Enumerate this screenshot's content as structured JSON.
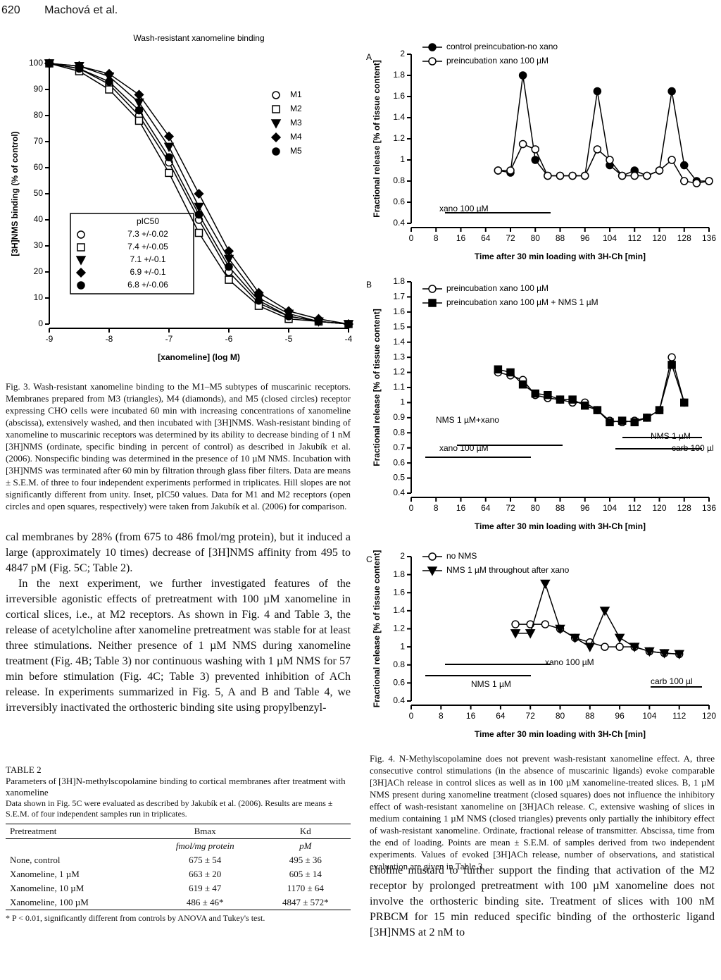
{
  "header": {
    "page": "620",
    "authors": "Machová et al."
  },
  "chart_data": [
    {
      "type": "line",
      "title": "Wash-resistant xanomeline binding",
      "ylabel": "[3H]NMS binding (% of control)",
      "xlabel": "[xanomeline] (log M)",
      "x": [
        -9,
        -8.5,
        -8,
        -7.5,
        -7,
        -6.5,
        -6,
        -5.5,
        -5,
        -4.5,
        -4
      ],
      "xlim": [
        -9,
        -4
      ],
      "xticks": [
        -9,
        -8,
        -7,
        -6,
        -5,
        -4
      ],
      "ylim": [
        0,
        100
      ],
      "yticks": [
        0,
        10,
        20,
        30,
        40,
        50,
        60,
        70,
        80,
        90,
        100
      ],
      "series": [
        {
          "name": "M1",
          "color": "#000000",
          "marker": "circle-open",
          "values": [
            100,
            98,
            92,
            80,
            62,
            40,
            20,
            8,
            3,
            1,
            0
          ]
        },
        {
          "name": "M2",
          "color": "#000000",
          "marker": "square-open",
          "values": [
            100,
            97,
            90,
            78,
            58,
            35,
            17,
            7,
            2,
            1,
            0
          ]
        },
        {
          "name": "M3",
          "color": "#000000",
          "marker": "triangle-filled",
          "values": [
            100,
            99,
            95,
            85,
            68,
            45,
            25,
            10,
            4,
            1,
            0
          ]
        },
        {
          "name": "M4",
          "color": "#000000",
          "marker": "diamond-filled",
          "values": [
            100,
            99,
            96,
            88,
            72,
            50,
            28,
            12,
            5,
            2,
            0
          ]
        },
        {
          "name": "M5",
          "color": "#000000",
          "marker": "circle-filled",
          "values": [
            100,
            98,
            93,
            82,
            64,
            42,
            22,
            9,
            3,
            1,
            0
          ]
        }
      ],
      "inset": {
        "header": "pIC50",
        "rows": [
          "7.3 +/-0.02",
          "7.4 +/-0.05",
          "7.1 +/-0.1",
          "6.9 +/-0.1",
          "6.8 +/-0.06"
        ]
      }
    },
    {
      "type": "line",
      "panel": "A",
      "ylabel": "Fractional release [% of tissue content]",
      "xlabel": "Time after 30 min loading with 3H-Ch [min]",
      "x": [
        68,
        72,
        76,
        80,
        84,
        88,
        92,
        96,
        100,
        104,
        108,
        112,
        116,
        120,
        124,
        128,
        132,
        136
      ],
      "xlim": [
        0,
        136
      ],
      "xticks": [
        0,
        8,
        16,
        64,
        72,
        80,
        88,
        96,
        104,
        112,
        120,
        128,
        136
      ],
      "ylim": [
        0.4,
        2.0
      ],
      "yticks": [
        0.4,
        0.6,
        0.8,
        1.0,
        1.2,
        1.4,
        1.6,
        1.8,
        2.0
      ],
      "series": [
        {
          "name": "control preincubation-no xano",
          "color": "#000000",
          "marker": "circle-filled",
          "values": [
            0.9,
            0.88,
            1.8,
            1.0,
            0.85,
            0.85,
            0.85,
            0.85,
            1.65,
            0.95,
            0.85,
            0.9,
            0.85,
            0.9,
            1.65,
            0.95,
            0.8,
            0.8
          ]
        },
        {
          "name": "preincubation xano 100 µM",
          "color": "#000000",
          "marker": "circle-open",
          "values": [
            0.9,
            0.9,
            1.15,
            1.1,
            0.85,
            0.85,
            0.85,
            0.85,
            1.1,
            1.0,
            0.85,
            0.85,
            0.85,
            0.9,
            1.0,
            0.8,
            0.78,
            0.8
          ]
        }
      ],
      "annotations": [
        "xano 100 µM"
      ]
    },
    {
      "type": "line",
      "panel": "B",
      "ylabel": "Fractional release [% of tissue content]",
      "xlabel": "Time after 30 min loading with 3H-Ch [min]",
      "x": [
        68,
        72,
        76,
        80,
        84,
        88,
        92,
        96,
        100,
        104,
        108,
        112,
        116,
        120,
        124,
        128
      ],
      "xlim": [
        0,
        136
      ],
      "xticks": [
        0,
        8,
        16,
        64,
        72,
        80,
        88,
        96,
        104,
        112,
        120,
        128,
        136
      ],
      "ylim": [
        0.4,
        1.8
      ],
      "yticks": [
        0.4,
        0.5,
        0.6,
        0.7,
        0.8,
        0.9,
        1.0,
        1.1,
        1.2,
        1.3,
        1.4,
        1.5,
        1.6,
        1.7,
        1.8
      ],
      "series": [
        {
          "name": "preincubation xano 100 µM",
          "color": "#000000",
          "marker": "circle-open",
          "values": [
            1.2,
            1.18,
            1.15,
            1.05,
            1.03,
            1.02,
            1.0,
            1.0,
            0.95,
            0.88,
            0.87,
            0.88,
            0.9,
            0.95,
            1.3,
            1.0
          ]
        },
        {
          "name": "preincubation xano 100 µM + NMS 1 µM",
          "color": "#000000",
          "marker": "square-filled",
          "values": [
            1.22,
            1.2,
            1.12,
            1.06,
            1.05,
            1.02,
            1.02,
            0.98,
            0.95,
            0.87,
            0.88,
            0.87,
            0.9,
            0.95,
            1.25,
            1.0
          ]
        }
      ],
      "annotations": [
        "NMS 1 µM+xano",
        "xano 100 µM",
        "NMS 1 µM",
        "carb 100 µl"
      ]
    },
    {
      "type": "line",
      "panel": "C",
      "ylabel": "Fractional release [% of tissue content]",
      "xlabel": "Time after 30 min loading with 3H-Ch [min]",
      "x": [
        68,
        72,
        76,
        80,
        84,
        88,
        92,
        96,
        100,
        104,
        108,
        112
      ],
      "xlim": [
        0,
        120
      ],
      "xticks": [
        0,
        8,
        16,
        64,
        72,
        80,
        88,
        96,
        104,
        112,
        120
      ],
      "ylim": [
        0.4,
        2.0
      ],
      "yticks": [
        0.4,
        0.6,
        0.8,
        1.0,
        1.2,
        1.4,
        1.6,
        1.8,
        2.0
      ],
      "series": [
        {
          "name": "no NMS",
          "color": "#000000",
          "marker": "circle-open",
          "values": [
            1.25,
            1.25,
            1.25,
            1.2,
            1.1,
            1.05,
            1.0,
            1.0,
            1.0,
            0.95,
            0.93,
            0.92
          ]
        },
        {
          "name": "NMS 1 µM throughout after xano",
          "color": "#000000",
          "marker": "triangle-filled",
          "values": [
            1.15,
            1.15,
            1.7,
            1.2,
            1.1,
            1.0,
            1.4,
            1.1,
            1.0,
            0.95,
            0.93,
            0.92
          ]
        }
      ],
      "annotations": [
        "NMS 1 µM",
        "xano 100 µM",
        "carb 100 µl"
      ]
    }
  ],
  "fig3_caption": "Fig. 3. Wash-resistant xanomeline binding to the M1–M5 subtypes of muscarinic receptors. Membranes prepared from M3 (triangles), M4 (diamonds), and M5 (closed circles) receptor expressing CHO cells were incubated 60 min with increasing concentrations of xanomeline (abscissa), extensively washed, and then incubated with [3H]NMS. Wash-resistant binding of xanomeline to muscarinic receptors was determined by its ability to decrease binding of 1 nM [3H]NMS (ordinate, specific binding in percent of control) as described in Jakubík et al. (2006). Nonspecific binding was determined in the presence of 10 µM NMS. Incubation with [3H]NMS was terminated after 60 min by filtration through glass fiber filters. Data are means ± S.E.M. of three to four independent experiments performed in triplicates. Hill slopes are not significantly different from unity. Inset, pIC50 values. Data for M1 and M2 receptors (open circles and open squares, respectively) were taken from Jakubík et al. (2006) for comparison.",
  "left_body": [
    "cal membranes by 28% (from 675 to 486 fmol/mg protein), but it induced a large (approximately 10 times) decrease of [3H]NMS affinity from 495 to 4847 pM (Fig. 5C; Table 2).",
    "In the next experiment, we further investigated features of the irreversible agonistic effects of pretreatment with 100 µM xanomeline in cortical slices, i.e., at M2 receptors. As shown in Fig. 4 and Table 3, the release of acetylcholine after xanomeline pretreatment was stable for at least three stimulations. Neither presence of 1 µM NMS during xanomeline treatment (Fig. 4B; Table 3) nor continuous washing with 1 µM NMS for 57 min before stimulation (Fig. 4C; Table 3) prevented inhibition of ACh release. In experiments summarized in Fig. 5, A and B and Table 4, we irreversibly inactivated the orthosteric binding site using propylbenzyl-"
  ],
  "table": {
    "label": "TABLE 2",
    "title": "Parameters of [3H]N-methylscopolamine binding to cortical membranes after treatment with xanomeline",
    "note": "Data shown in Fig. 5C were evaluated as described by Jakubík et al. (2006). Results are means ± S.E.M. of four independent samples run in triplicates.",
    "columns": [
      "Pretreatment",
      "Bmax",
      "Kd"
    ],
    "units": [
      "fmol/mg protein",
      "pM"
    ],
    "rows": [
      [
        "None, control",
        "675 ± 54",
        "495 ± 36"
      ],
      [
        "Xanomeline, 1 µM",
        "663 ± 20",
        "605 ± 14"
      ],
      [
        "Xanomeline, 10 µM",
        "619 ± 47",
        "1170 ± 64"
      ],
      [
        "Xanomeline, 100 µM",
        "486 ± 46*",
        "4847 ± 572*"
      ]
    ],
    "footnote": "* P < 0.01, significantly different from controls by ANOVA and Tukey's test."
  },
  "fig4_caption": "Fig. 4. N-Methylscopolamine does not prevent wash-resistant xanomeline effect. A, three consecutive control stimulations (in the absence of muscarinic ligands) evoke comparable [3H]ACh release in control slices as well as in 100 µM xanomeline-treated slices. B, 1 µM NMS present during xanomeline treatment (closed squares) does not influence the inhibitory effect of wash-resistant xanomeline on [3H]ACh release. C, extensive washing of slices in medium containing 1 µM NMS (closed triangles) prevents only partially the inhibitory effect of wash-resistant xanomeline. Ordinate, fractional release of transmitter. Abscissa, time from the end of loading. Points are mean ± S.E.M. of samples derived from two independent experiments. Values of evoked [3H]ACh release, number of observations, and statistical evaluation are given in Table 3.",
  "right_body": "choline mustard to further support the finding that activation of the M2 receptor by prolonged pretreatment with 100 µM xanomeline does not involve the orthosteric binding site. Treatment of slices with 100 nM PRBCM for 15 min reduced specific binding of the orthosteric ligand [3H]NMS at 2 nM to"
}
